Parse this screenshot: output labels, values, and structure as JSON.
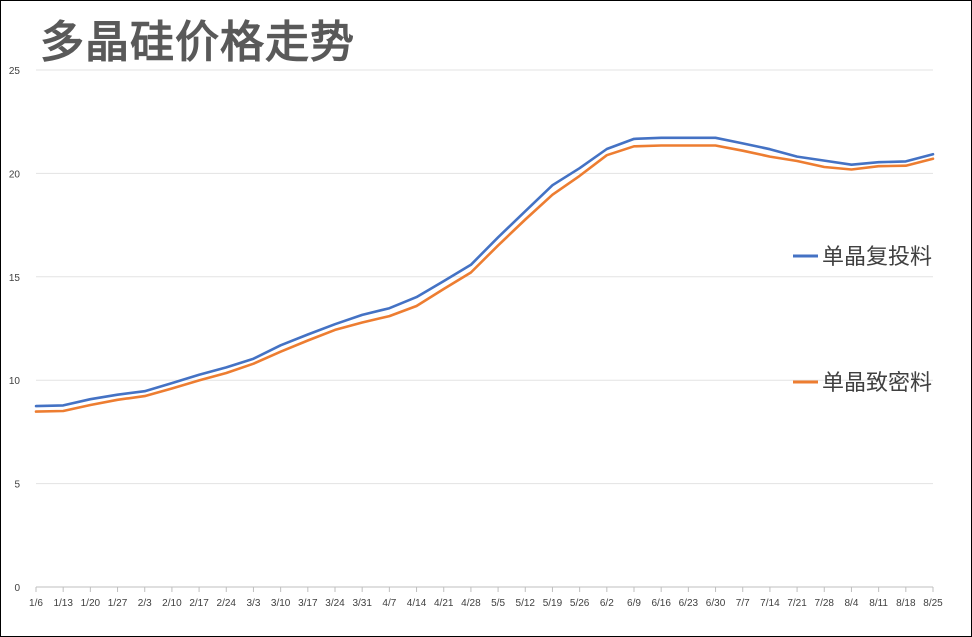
{
  "chart_data": {
    "type": "line",
    "title": "多晶硅价格走势",
    "xlabel": "",
    "ylabel": "",
    "ylim": [
      0,
      25
    ],
    "yticks": [
      0,
      5,
      10,
      15,
      20,
      25
    ],
    "grid": true,
    "legend_position": "right",
    "categories": [
      "1/6",
      "1/13",
      "1/20",
      "1/27",
      "2/3",
      "2/10",
      "2/17",
      "2/24",
      "3/3",
      "3/10",
      "3/17",
      "3/24",
      "3/31",
      "4/7",
      "4/14",
      "4/21",
      "4/28",
      "5/5",
      "5/12",
      "5/19",
      "5/26",
      "6/2",
      "6/9",
      "6/16",
      "6/23",
      "6/30",
      "7/7",
      "7/14",
      "7/21",
      "7/28",
      "8/4",
      "8/11",
      "8/18",
      "8/25"
    ],
    "series": [
      {
        "name": "单晶复投料",
        "color": "#4472c4",
        "values": [
          8.75,
          8.78,
          9.08,
          9.3,
          9.47,
          9.86,
          10.26,
          10.62,
          11.04,
          11.69,
          12.21,
          12.71,
          13.16,
          13.48,
          14.02,
          14.79,
          15.58,
          16.91,
          18.17,
          19.43,
          20.25,
          21.18,
          21.67,
          21.72,
          21.72,
          21.72,
          21.45,
          21.17,
          20.81,
          20.62,
          20.42,
          20.54,
          20.58,
          20.93
        ]
      },
      {
        "name": "单晶致密料",
        "color": "#ed7d31",
        "values": [
          8.48,
          8.51,
          8.8,
          9.05,
          9.23,
          9.6,
          9.99,
          10.35,
          10.8,
          11.38,
          11.92,
          12.43,
          12.79,
          13.1,
          13.59,
          14.41,
          15.21,
          16.52,
          17.77,
          18.97,
          19.88,
          20.88,
          21.31,
          21.35,
          21.35,
          21.35,
          21.1,
          20.81,
          20.6,
          20.31,
          20.19,
          20.35,
          20.37,
          20.71
        ]
      }
    ]
  }
}
